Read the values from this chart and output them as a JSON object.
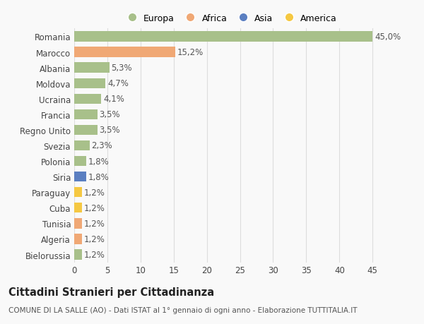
{
  "categories": [
    "Romania",
    "Marocco",
    "Albania",
    "Moldova",
    "Ucraina",
    "Francia",
    "Regno Unito",
    "Svezia",
    "Polonia",
    "Siria",
    "Paraguay",
    "Cuba",
    "Tunisia",
    "Algeria",
    "Bielorussia"
  ],
  "values": [
    45.0,
    15.2,
    5.3,
    4.7,
    4.1,
    3.5,
    3.5,
    2.3,
    1.8,
    1.8,
    1.2,
    1.2,
    1.2,
    1.2,
    1.2
  ],
  "labels": [
    "45,0%",
    "15,2%",
    "5,3%",
    "4,7%",
    "4,1%",
    "3,5%",
    "3,5%",
    "2,3%",
    "1,8%",
    "1,8%",
    "1,2%",
    "1,2%",
    "1,2%",
    "1,2%",
    "1,2%"
  ],
  "continents": [
    "Europa",
    "Africa",
    "Europa",
    "Europa",
    "Europa",
    "Europa",
    "Europa",
    "Europa",
    "Europa",
    "Asia",
    "America",
    "America",
    "Africa",
    "Africa",
    "Europa"
  ],
  "continent_colors": {
    "Europa": "#a8c08a",
    "Africa": "#f0a875",
    "Asia": "#5b7fc1",
    "America": "#f5c842"
  },
  "legend_continents": [
    "Europa",
    "Africa",
    "Asia",
    "America"
  ],
  "legend_colors": [
    "#a8c08a",
    "#f0a875",
    "#5b7fc1",
    "#f5c842"
  ],
  "xlim": [
    0,
    47
  ],
  "xticks": [
    0,
    5,
    10,
    15,
    20,
    25,
    30,
    35,
    40,
    45
  ],
  "title": "Cittadini Stranieri per Cittadinanza",
  "subtitle": "COMUNE DI LA SALLE (AO) - Dati ISTAT al 1° gennaio di ogni anno - Elaborazione TUTTITALIA.IT",
  "background_color": "#f9f9f9",
  "bar_height": 0.65,
  "grid_color": "#dddddd",
  "label_fontsize": 8.5,
  "tick_fontsize": 8.5,
  "title_fontsize": 10.5,
  "subtitle_fontsize": 7.5,
  "legend_fontsize": 9
}
